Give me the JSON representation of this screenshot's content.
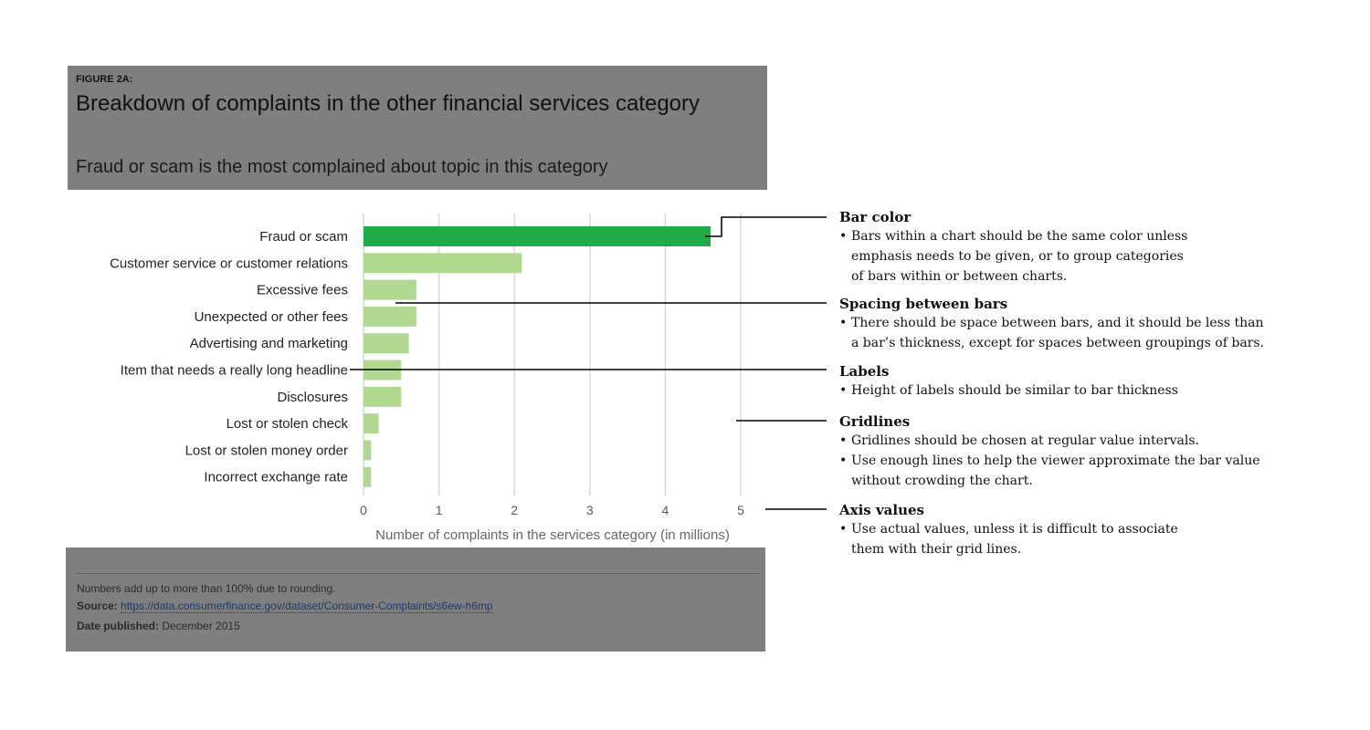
{
  "figure": {
    "label": "FIGURE 2A:",
    "title": "Breakdown of complaints in the other financial services category",
    "subtitle": "Fraud or scam is the most complained about topic in this category"
  },
  "chart_data": {
    "type": "bar",
    "orientation": "horizontal",
    "categories": [
      "Fraud or scam",
      "Customer service or customer relations",
      "Excessive fees",
      "Unexpected or other fees",
      "Advertising and marketing",
      "Item that needs a really long headline",
      "Disclosures",
      "Lost or stolen check",
      "Lost or stolen money order",
      "Incorrect exchange rate"
    ],
    "values": [
      4.6,
      2.1,
      0.7,
      0.7,
      0.6,
      0.5,
      0.5,
      0.2,
      0.1,
      0.1
    ],
    "xlabel": "Number of complaints in the services category (in millions)",
    "xlim": [
      0,
      5
    ],
    "xticks": [
      "0",
      "1",
      "2",
      "3",
      "4",
      "5"
    ],
    "grid": true,
    "colors": {
      "highlight": "#20aa4a",
      "default": "#b0d890",
      "grid": "#d8d8d8"
    },
    "highlight_index": 0
  },
  "footer": {
    "note": "Numbers add up to more than 100% due to rounding.",
    "source_label": "Source:",
    "source_url": "https://data.consumerfinance.gov/dataset/Consumer-Complaints/s6ew-h6mp",
    "date_label": "Date published:",
    "date_value": "December 2015"
  },
  "annotations": [
    {
      "title": "Bar color",
      "items": [
        "Bars within a chart should be the same color unless emphasis needs to be given, or to group categories of bars within or between charts."
      ]
    },
    {
      "title": "Spacing between bars",
      "items": [
        "There should be space between bars, and it should be less than a bar’s thickness, except for spaces between groupings of bars."
      ]
    },
    {
      "title": "Labels",
      "items": [
        "Height of labels should be similar to bar thickness"
      ]
    },
    {
      "title": "Gridlines",
      "items": [
        "Gridlines should be chosen at regular value intervals.",
        "Use enough lines to help the viewer approximate the bar value without crowding the chart."
      ]
    },
    {
      "title": "Axis values",
      "items": [
        "Use actual values, unless it is difficult to associate them with their grid lines."
      ]
    }
  ]
}
